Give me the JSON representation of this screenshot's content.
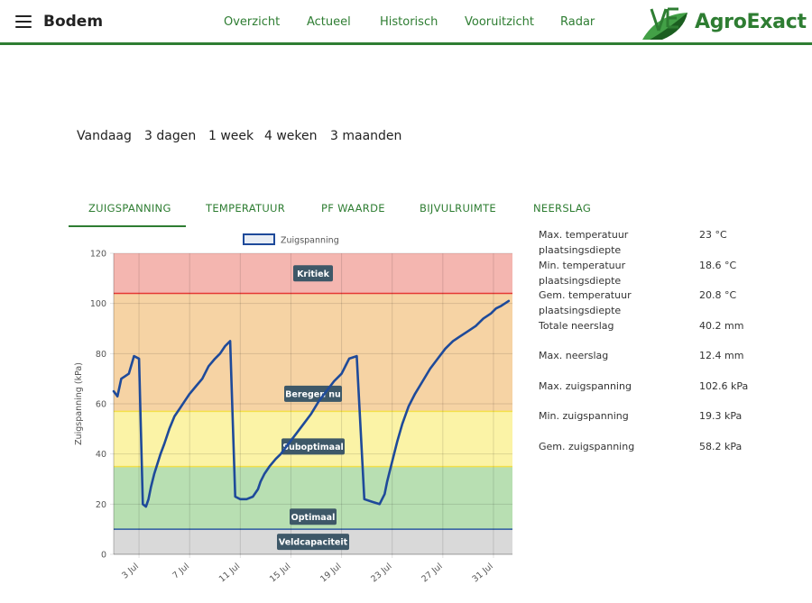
{
  "header": {
    "title": "Bodem",
    "nav": [
      "Overzicht",
      "Actueel",
      "Historisch",
      "Vooruitzicht",
      "Radar"
    ],
    "logo_text": "AgroExact",
    "brand_color": "#2e7d32"
  },
  "ranges": [
    "Vandaag",
    "3 dagen",
    "1 week",
    "4 weken",
    "3 maanden"
  ],
  "tabs": {
    "active": "ZUIGSPANNING",
    "items": [
      "ZUIGSPANNING",
      "TEMPERATUUR",
      "PF WAARDE",
      "BIJVULRUIMTE",
      "NEERSLAG"
    ]
  },
  "stats": [
    {
      "label": "Max. temperatuur plaatsingsdiepte",
      "value": "23 °C"
    },
    {
      "label": "Min. temperatuur plaatsingsdiepte",
      "value": "18.6 °C"
    },
    {
      "label": "Gem. temperatuur plaatsingsdiepte",
      "value": "20.8 °C"
    },
    {
      "label": "Totale neerslag",
      "value": "40.2 mm"
    },
    {
      "label": "Max. neerslag",
      "value": "12.4 mm"
    },
    {
      "label": "Max. zuigspanning",
      "value": "102.6 kPa"
    },
    {
      "label": "Min. zuigspanning",
      "value": "19.3 kPa"
    },
    {
      "label": "Gem. zuigspanning",
      "value": "58.2 kPa"
    }
  ],
  "chart_data": {
    "type": "line",
    "ylabel": "Zuigspanning (kPa)",
    "ylim": [
      0,
      120
    ],
    "yticks": [
      0,
      20,
      40,
      60,
      80,
      100,
      120
    ],
    "x_range": [
      "1 Jul",
      "1 Aug"
    ],
    "xticks": [
      "3 Jul",
      "7 Jul",
      "11 Jul",
      "15 Jul",
      "19 Jul",
      "23 Jul",
      "27 Jul",
      "31 Jul"
    ],
    "legend": {
      "label": "Zuigspanning",
      "position": "top"
    },
    "grid": true,
    "zones": [
      {
        "name": "Veldcapaciteit",
        "from": 0,
        "to": 10,
        "color": "#d9d9d9"
      },
      {
        "name": "Optimaal",
        "from": 10,
        "to": 35,
        "color": "#b8dfb2"
      },
      {
        "name": "Suboptimaal",
        "from": 35,
        "to": 57,
        "color": "#fbf3a6"
      },
      {
        "name": "Beregen nu",
        "from": 57,
        "to": 104,
        "color": "#f6d3a4"
      },
      {
        "name": "Kritiek",
        "from": 104,
        "to": 120,
        "color": "#f4b6b0"
      }
    ],
    "line_color": "#1e4a9a",
    "series": [
      {
        "name": "Zuigspanning",
        "x": [
          1.0,
          1.3,
          1.6,
          1.9,
          2.2,
          2.6,
          3.0,
          3.3,
          3.55,
          3.75,
          3.95,
          4.2,
          4.45,
          4.7,
          5.0,
          5.4,
          5.8,
          6.2,
          6.6,
          7.0,
          7.5,
          8.0,
          8.5,
          9.0,
          9.4,
          9.8,
          10.2,
          10.6,
          11.0,
          11.5,
          12.0,
          12.4,
          12.6,
          12.9,
          13.3,
          13.8,
          14.2,
          14.8,
          15.4,
          16.0,
          16.6,
          17.2,
          17.8,
          18.4,
          19.0,
          19.6,
          20.2,
          20.8,
          21.4,
          22.0,
          22.4,
          22.6,
          22.8,
          23.1,
          23.4,
          23.8,
          24.3,
          24.8,
          25.4,
          26.0,
          26.6,
          27.2,
          27.8,
          28.4,
          29.0,
          29.6,
          30.2,
          30.8,
          31.2,
          31.6,
          31.9,
          32.2
        ],
        "y": [
          65,
          63,
          70,
          71,
          72,
          79,
          78,
          20,
          19,
          22,
          27,
          32,
          36,
          40,
          44,
          50,
          55,
          58,
          61,
          64,
          67,
          70,
          75,
          78,
          80,
          83,
          85,
          23,
          22,
          22,
          23,
          26,
          29,
          32,
          35,
          38,
          40,
          44,
          48,
          52,
          56,
          61,
          65,
          69,
          72,
          78,
          79,
          22,
          21,
          20,
          24,
          29,
          33,
          39,
          45,
          52,
          59,
          64,
          69,
          74,
          78,
          82,
          85,
          87,
          89,
          91,
          94,
          96,
          98,
          99,
          100,
          101
        ]
      }
    ]
  }
}
